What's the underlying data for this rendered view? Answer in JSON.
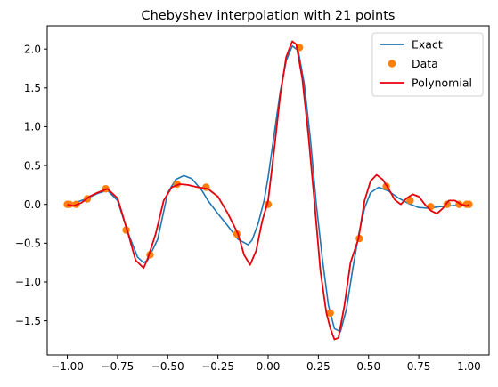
{
  "chart_data": {
    "type": "line",
    "title": "Chebyshev interpolation with 21 points",
    "xlabel": "",
    "ylabel": "",
    "xlim": [
      -1.1,
      1.1
    ],
    "ylim": [
      -1.94,
      2.3
    ],
    "grid": false,
    "legend_position": "top-right",
    "x_ticks": [
      -1.0,
      -0.75,
      -0.5,
      -0.25,
      0.0,
      0.25,
      0.5,
      0.75,
      1.0
    ],
    "x_tick_labels": [
      "−1.00",
      "−0.75",
      "−0.50",
      "−0.25",
      "0.00",
      "0.25",
      "0.50",
      "0.75",
      "1.00"
    ],
    "y_ticks": [
      -1.5,
      -1.0,
      -0.5,
      0.0,
      0.5,
      1.0,
      1.5,
      2.0
    ],
    "y_tick_labels": [
      "−1.5",
      "−1.0",
      "−0.5",
      "0.0",
      "0.5",
      "1.0",
      "1.5",
      "2.0"
    ],
    "series": [
      {
        "name": "Exact",
        "kind": "line",
        "color": "#1f77b4",
        "x": [
          -1.0,
          -0.95,
          -0.9,
          -0.85,
          -0.8,
          -0.75,
          -0.7,
          -0.65,
          -0.62,
          -0.6,
          -0.55,
          -0.5,
          -0.46,
          -0.42,
          -0.38,
          -0.33,
          -0.3,
          -0.25,
          -0.2,
          -0.15,
          -0.1,
          -0.08,
          -0.05,
          -0.02,
          0.0,
          0.03,
          0.06,
          0.09,
          0.12,
          0.15,
          0.18,
          0.21,
          0.24,
          0.27,
          0.3,
          0.33,
          0.36,
          0.39,
          0.42,
          0.45,
          0.48,
          0.51,
          0.55,
          0.6,
          0.65,
          0.7,
          0.75,
          0.8,
          0.85,
          0.9,
          0.95,
          1.0
        ],
        "y": [
          0.0,
          0.03,
          0.08,
          0.14,
          0.18,
          0.05,
          -0.35,
          -0.68,
          -0.75,
          -0.72,
          -0.45,
          0.15,
          0.32,
          0.37,
          0.33,
          0.18,
          0.05,
          -0.12,
          -0.28,
          -0.45,
          -0.52,
          -0.46,
          -0.25,
          0.05,
          0.35,
          0.9,
          1.45,
          1.85,
          2.04,
          1.98,
          1.55,
          0.85,
          0.0,
          -0.7,
          -1.3,
          -1.6,
          -1.64,
          -1.35,
          -0.85,
          -0.4,
          -0.05,
          0.15,
          0.22,
          0.17,
          0.08,
          0.01,
          -0.04,
          -0.05,
          -0.03,
          -0.02,
          -0.01,
          0.0
        ]
      },
      {
        "name": "Data",
        "kind": "scatter",
        "color": "#ff7f0e",
        "x": [
          -1.0,
          -0.989,
          -0.956,
          -0.901,
          -0.809,
          -0.707,
          -0.588,
          -0.454,
          -0.309,
          -0.156,
          0.0,
          0.156,
          0.309,
          0.454,
          0.588,
          0.707,
          0.809,
          0.891,
          0.951,
          0.988,
          1.0
        ],
        "y": [
          0.0,
          0.0,
          0.0,
          0.07,
          0.2,
          -0.33,
          -0.65,
          0.26,
          0.22,
          -0.38,
          0.0,
          2.02,
          -1.4,
          -0.44,
          0.23,
          0.05,
          -0.03,
          0.0,
          0.0,
          0.0,
          0.0
        ]
      },
      {
        "name": "Polynomial",
        "kind": "line",
        "color": "#e8000b",
        "x": [
          -1.0,
          -0.97,
          -0.93,
          -0.89,
          -0.85,
          -0.8,
          -0.75,
          -0.7,
          -0.66,
          -0.62,
          -0.6,
          -0.56,
          -0.52,
          -0.48,
          -0.44,
          -0.4,
          -0.35,
          -0.3,
          -0.25,
          -0.2,
          -0.15,
          -0.12,
          -0.09,
          -0.06,
          -0.03,
          0.0,
          0.03,
          0.06,
          0.09,
          0.12,
          0.14,
          0.17,
          0.2,
          0.23,
          0.26,
          0.29,
          0.31,
          0.33,
          0.35,
          0.38,
          0.41,
          0.45,
          0.48,
          0.51,
          0.54,
          0.57,
          0.6,
          0.63,
          0.66,
          0.69,
          0.72,
          0.75,
          0.78,
          0.81,
          0.84,
          0.87,
          0.9,
          0.93,
          0.96,
          0.99,
          1.0
        ],
        "y": [
          0.0,
          -0.02,
          0.02,
          0.1,
          0.15,
          0.2,
          0.08,
          -0.35,
          -0.72,
          -0.82,
          -0.7,
          -0.38,
          0.05,
          0.22,
          0.26,
          0.25,
          0.22,
          0.2,
          0.1,
          -0.12,
          -0.38,
          -0.65,
          -0.78,
          -0.6,
          -0.22,
          0.05,
          0.7,
          1.4,
          1.9,
          2.1,
          2.06,
          1.62,
          0.9,
          0.05,
          -0.85,
          -1.4,
          -1.6,
          -1.74,
          -1.72,
          -1.3,
          -0.75,
          -0.44,
          0.05,
          0.3,
          0.38,
          0.32,
          0.2,
          0.06,
          0.0,
          0.08,
          0.13,
          0.1,
          0.0,
          -0.08,
          -0.12,
          -0.05,
          0.05,
          0.05,
          0.0,
          -0.02,
          0.0
        ]
      }
    ]
  }
}
